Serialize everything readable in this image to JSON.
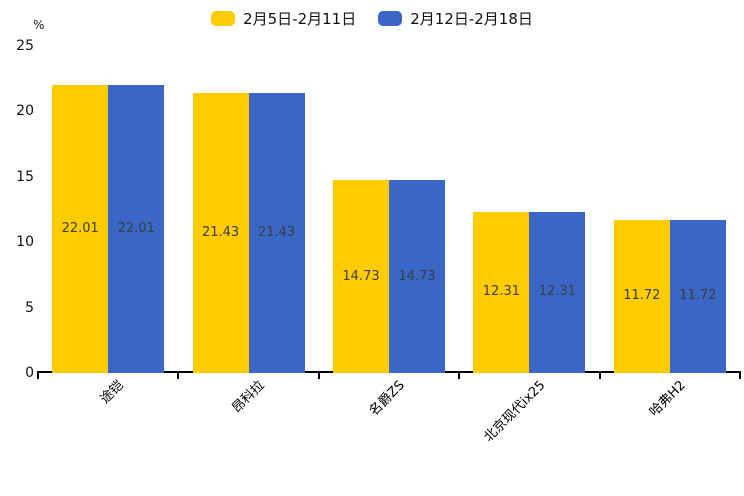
{
  "chart_data": {
    "type": "bar",
    "title": "",
    "categories": [
      "途铠",
      "昂科拉",
      "名爵ZS",
      "北京现代ix25",
      "哈弗H2"
    ],
    "series": [
      {
        "name": "2月5日-2月11日",
        "color": "#FECC00",
        "values": [
          22.01,
          21.43,
          14.73,
          12.31,
          11.72
        ]
      },
      {
        "name": "2月12日-2月18日",
        "color": "#3A66C8",
        "values": [
          22.01,
          21.43,
          14.73,
          12.31,
          11.72
        ]
      }
    ],
    "value_labels": [
      "22.01",
      "21.43",
      "14.73",
      "12.31",
      "11.72"
    ],
    "ylabel": "%",
    "ylim": [
      0,
      25
    ],
    "yticks": [
      0,
      5,
      10,
      15,
      20,
      25
    ],
    "grid": false,
    "legend_position": "top",
    "bar_label_position": "inside-center",
    "xlabel_rotation_deg": 45
  }
}
